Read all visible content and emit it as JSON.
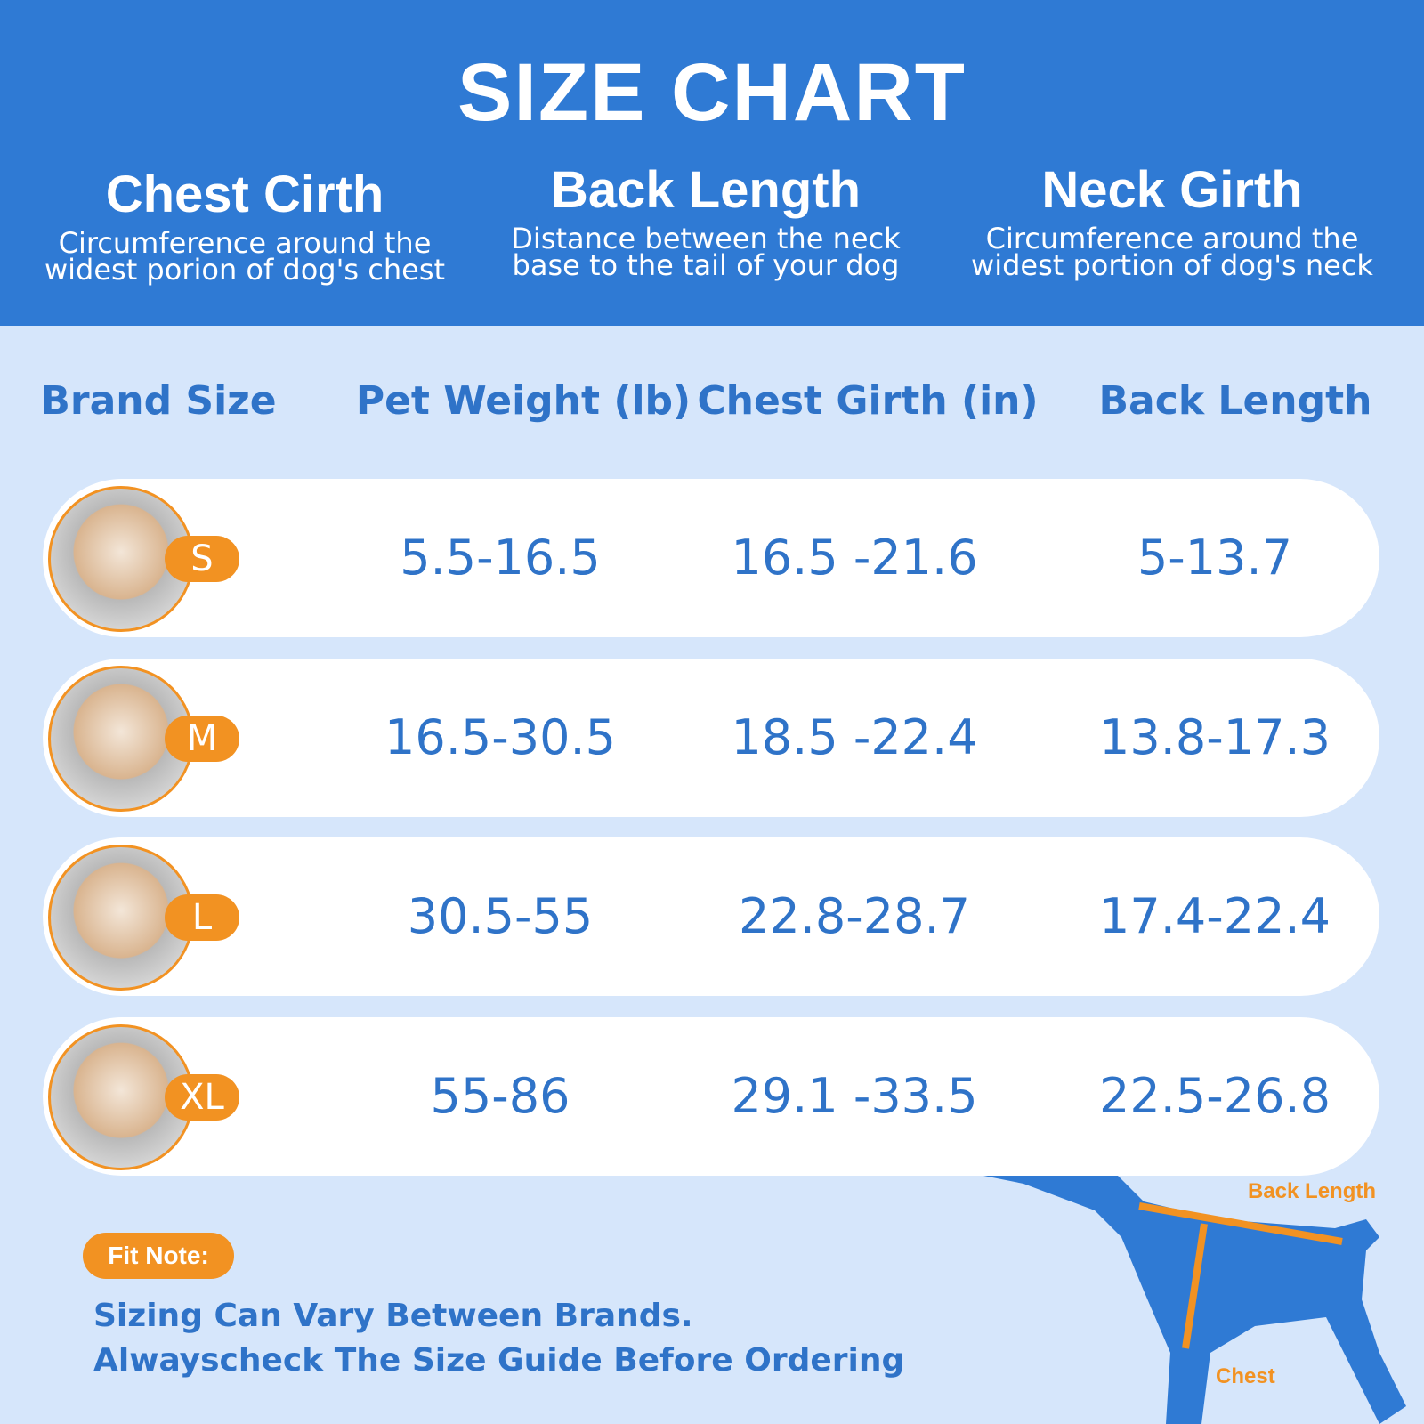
{
  "header": {
    "title": "SIZE CHART",
    "columns": [
      {
        "title": "Chest Cirth",
        "lines": [
          "Circumference around the",
          "widest porion of dog's chest"
        ]
      },
      {
        "title": "Back Length",
        "lines": [
          "Distance between the neck",
          "base to the tail of your dog"
        ]
      },
      {
        "title": "Neck Girth",
        "lines": [
          "Circumference around the",
          "widest portion of dog's neck"
        ]
      }
    ]
  },
  "table": {
    "headers": [
      "Brand Size",
      "Pet Weight (lb)",
      "Chest Girth (in)",
      "Back Length"
    ],
    "rows": [
      [
        "S",
        "5.5-16.5",
        "16.5 -21.6",
        "5-13.7"
      ],
      [
        "M",
        "16.5-30.5",
        "18.5 -22.4",
        "13.8-17.3"
      ],
      [
        "L",
        "30.5-55",
        "22.8-28.7",
        "17.4-22.4"
      ],
      [
        "XL",
        "55-86",
        "29.1 -33.5",
        "22.5-26.8"
      ]
    ]
  },
  "fit_note": {
    "label": "Fit Note:",
    "lines": [
      "Sizing Can Vary Between Brands.",
      "Alwayscheck The Size Guide Before Ordering"
    ]
  },
  "diagram": {
    "back_label": "Back Length",
    "chest_label": "Chest"
  }
}
